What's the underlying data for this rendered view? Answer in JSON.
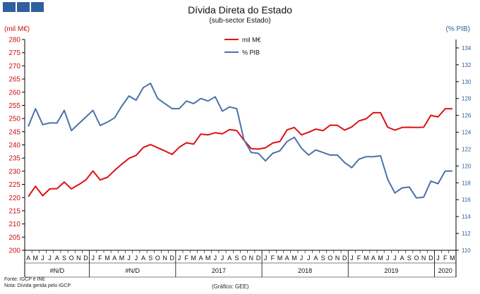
{
  "header": {
    "title": "Dívida Direta do Estado",
    "subtitle": "(sub-sector Estado)"
  },
  "footer": {
    "source": "Fonte: IGCP e INE",
    "note": "Nota: Dívida gerida pelo IGCP",
    "credit": "(Gráfico:  GEE)"
  },
  "chart_data": {
    "type": "line",
    "title": "Dívida Direta do Estado",
    "subtitle": "(sub-sector Estado)",
    "y_left_label": "(mil M€)",
    "y_right_label": "(% PIB)",
    "y_left_range": [
      200,
      280
    ],
    "y_left_ticks": [
      200,
      205,
      210,
      215,
      220,
      225,
      230,
      235,
      240,
      245,
      250,
      255,
      260,
      265,
      270,
      275,
      280
    ],
    "y_right_range": [
      110,
      135
    ],
    "y_right_ticks": [
      110,
      112,
      114,
      116,
      118,
      120,
      122,
      124,
      126,
      128,
      130,
      132,
      134
    ],
    "legend_position": "top-center",
    "grid": false,
    "months": [
      "A",
      "M",
      "J",
      "J",
      "A",
      "S",
      "O",
      "N",
      "D",
      "J",
      "F",
      "M",
      "A",
      "M",
      "J",
      "J",
      "A",
      "S",
      "O",
      "N",
      "D",
      "J",
      "F",
      "M",
      "A",
      "M",
      "J",
      "J",
      "A",
      "S",
      "O",
      "N",
      "D",
      "J",
      "F",
      "M",
      "A",
      "M",
      "J",
      "J",
      "A",
      "S",
      "O",
      "N",
      "D",
      "J",
      "F",
      "M",
      "A",
      "M",
      "J",
      "J",
      "A",
      "S",
      "O",
      "N",
      "D",
      "J",
      "F",
      "M"
    ],
    "year_labels": [
      {
        "label": "#N/D",
        "start": 0,
        "end": 8
      },
      {
        "label": "#N/D",
        "start": 9,
        "end": 20
      },
      {
        "label": "2017",
        "start": 21,
        "end": 32
      },
      {
        "label": "2018",
        "start": 33,
        "end": 44
      },
      {
        "label": "2019",
        "start": 45,
        "end": 56
      },
      {
        "label": "2020",
        "start": 57,
        "end": 59
      }
    ],
    "series": [
      {
        "name": "mil M€",
        "axis": "left",
        "color": "#dd1111",
        "values": [
          220.4,
          224.3,
          220.7,
          223.3,
          223.4,
          225.9,
          223.3,
          224.9,
          226.7,
          230.1,
          226.7,
          227.7,
          230.3,
          232.7,
          234.9,
          236.0,
          239.0,
          240.1,
          238.9,
          237.7,
          236.4,
          239.1,
          240.8,
          240.3,
          244.1,
          243.8,
          244.6,
          244.2,
          245.8,
          245.4,
          241.8,
          238.6,
          238.4,
          238.9,
          240.7,
          241.3,
          245.7,
          246.6,
          243.8,
          244.8,
          246.0,
          245.4,
          247.5,
          247.4,
          245.6,
          246.8,
          249.1,
          249.9,
          252.2,
          252.2,
          246.7,
          245.6,
          246.6,
          246.7,
          246.6,
          246.7,
          251.2,
          250.6,
          253.7,
          253.7
        ]
      },
      {
        "name": "% PIB",
        "axis": "right",
        "color": "#4a72a8",
        "values": [
          124.7,
          126.8,
          124.9,
          125.1,
          125.1,
          126.6,
          124.2,
          125.0,
          125.8,
          126.6,
          124.8,
          125.2,
          125.7,
          127.1,
          128.3,
          127.8,
          129.3,
          129.8,
          128.0,
          127.4,
          126.8,
          126.8,
          127.7,
          127.4,
          128.0,
          127.7,
          128.2,
          126.5,
          127.0,
          126.8,
          123.1,
          121.6,
          121.5,
          120.6,
          121.5,
          121.8,
          122.9,
          123.4,
          122.1,
          121.3,
          121.9,
          121.6,
          121.3,
          121.3,
          120.4,
          119.8,
          120.8,
          121.1,
          121.1,
          121.2,
          118.4,
          116.8,
          117.4,
          117.5,
          116.2,
          116.3,
          118.2,
          117.9,
          119.4,
          119.4
        ]
      }
    ]
  }
}
